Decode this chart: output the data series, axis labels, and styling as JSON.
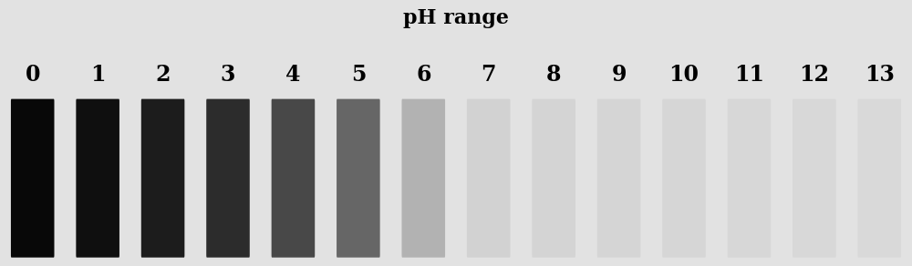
{
  "title": "pH range",
  "title_fontsize": 16,
  "title_fontweight": "bold",
  "ph_values": [
    0,
    1,
    2,
    3,
    4,
    5,
    6,
    7,
    8,
    9,
    10,
    11,
    12,
    13
  ],
  "bar_colors": [
    "#080808",
    "#0f0f0f",
    "#1c1c1c",
    "#2c2c2c",
    "#484848",
    "#666666",
    "#b2b2b2",
    "#d2d2d2",
    "#d4d4d4",
    "#d5d5d5",
    "#d6d6d6",
    "#d7d7d7",
    "#d8d8d8",
    "#d9d9d9"
  ],
  "background_color": "#e2e2e2",
  "label_fontsize": 17,
  "label_fontweight": "bold",
  "n_bars": 14
}
